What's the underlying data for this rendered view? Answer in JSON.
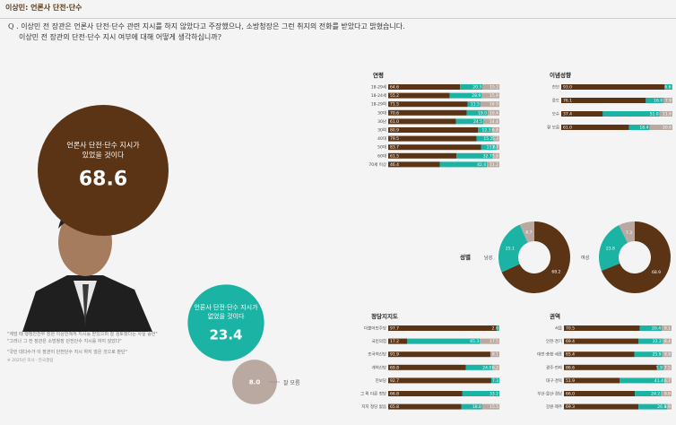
{
  "header": {
    "title": "이상민: 언론사 단전·단수"
  },
  "question": {
    "line1": "Q . 이상민 전 장관은 언론사 단전·단수 관련 지시를 하지 않았다고 주장했으나, 소방청장은 그런 취지의 전화를 받았다고 밝혔습니다.",
    "line2": "이상민 전 장관의 단전·단수 지시 여부에 대해 어떻게 생각하십니까?"
  },
  "main": {
    "yes_label": "언론사 단전·단수 지시가\n있었을 것이다",
    "yes_value": "68.6",
    "no_label": "언론사 단전·단수 지시가\n없었을 것이다",
    "no_value": "23.4",
    "dk_value": "8.0",
    "dk_label": "잘 모름"
  },
  "colors": {
    "yes": "#5b3415",
    "no": "#1bb3a3",
    "dk": "#b9a9a0",
    "bg": "#f4f4f4"
  },
  "note": {
    "p1": "\"계엄 때 행정안전부 장관 이상민에게 지시를 받았으며 잘 검토했다는 사실 증언\"",
    "p2": "\"그러나 그 전 장관은 소방청장 단전단수 지시를 하지 않았다\"",
    "p3": "\"국민 대다수가 이 장관이 단전단수 지시 하지 않은 것으로 판단\"",
    "source": "※ 2025년 조사 · 한국갤럽"
  },
  "chart_data": [
    {
      "type": "pie",
      "title": "",
      "labels": [
        "언론사 단전·단수 지시가 있었을 것이다",
        "언론사 단전·단수 지시가 없었을 것이다",
        "잘 모름"
      ],
      "values": [
        68.6,
        23.4,
        8.0
      ]
    },
    {
      "type": "bar",
      "stacked": true,
      "title": "연령",
      "categories": [
        "18-29세",
        "18-24세",
        "18-29여",
        "30대",
        "30남",
        "30여",
        "40대",
        "50대",
        "60대",
        "70세 이상"
      ],
      "series": [
        {
          "values": [
            64.6,
            55.2,
            71.5,
            70.6,
            61.0,
            80.9,
            79.5,
            83.7,
            61.5,
            46.4
          ]
        },
        {
          "values": [
            20.3,
            28.9,
            11.5,
            19.0,
            24.5,
            12.3,
            15.2,
            13.6,
            32.7,
            42.4
          ]
        },
        {
          "values": [
            15.2,
            15.9,
            16.9,
            10.4,
            14.4,
            6.8,
            5.3,
            2.7,
            5.8,
            11.2
          ]
        }
      ]
    },
    {
      "type": "bar",
      "stacked": true,
      "title": "이념성향",
      "categories": [
        "진보",
        "중도",
        "보수",
        "잘 모름"
      ],
      "series": [
        {
          "values": [
            93.0,
            76.1,
            37.4,
            61.0
          ]
        },
        {
          "values": [
            6.6,
            16.0,
            51.0,
            18.4
          ]
        },
        {
          "values": [
            0.4,
            7.9,
            11.6,
            20.6
          ]
        }
      ]
    },
    {
      "type": "pie",
      "title": "성별",
      "label": "남성",
      "labels": [
        "있었을 것",
        "없었을 것",
        "잘 모름"
      ],
      "values": [
        68.2,
        25.1,
        6.7
      ]
    },
    {
      "type": "pie",
      "title": "",
      "label": "여성",
      "labels": [
        "있었을 것",
        "없었을 것",
        "잘 모름"
      ],
      "values": [
        68.9,
        23.8,
        7.3
      ]
    },
    {
      "type": "bar",
      "stacked": true,
      "title": "정당지지도",
      "categories": [
        "더불어민주당",
        "국민의힘",
        "조국혁신당",
        "개혁신당",
        "진보당",
        "그 외 다른 정당",
        "지지 정당 없음"
      ],
      "series": [
        {
          "values": [
            97.7,
            17.2,
            91.9,
            69.8,
            92.7,
            66.8,
            65.8
          ]
        },
        {
          "values": [
            2.0,
            65.3,
            0,
            24.0,
            7.3,
            33.2,
            18.8
          ]
        },
        {
          "values": [
            0.3,
            17.5,
            8.1,
            6.2,
            0,
            0,
            15.5
          ]
        }
      ]
    },
    {
      "type": "bar",
      "stacked": true,
      "title": "권역",
      "categories": [
        "서울",
        "인천·경기",
        "대전·충청·세종",
        "광주·전라",
        "대구·경북",
        "부산·울산·경남",
        "강원·제주"
      ],
      "series": [
        {
          "values": [
            70.5,
            69.4,
            65.4,
            86.6,
            51.9,
            66.0,
            69.3
          ]
        },
        {
          "values": [
            20.4,
            22.2,
            25.9,
            5.9,
            41.4,
            24.2,
            26.8
          ]
        },
        {
          "values": [
            9.1,
            8.4,
            8.8,
            7.5,
            6.7,
            9.8,
            3.9
          ]
        }
      ]
    }
  ]
}
